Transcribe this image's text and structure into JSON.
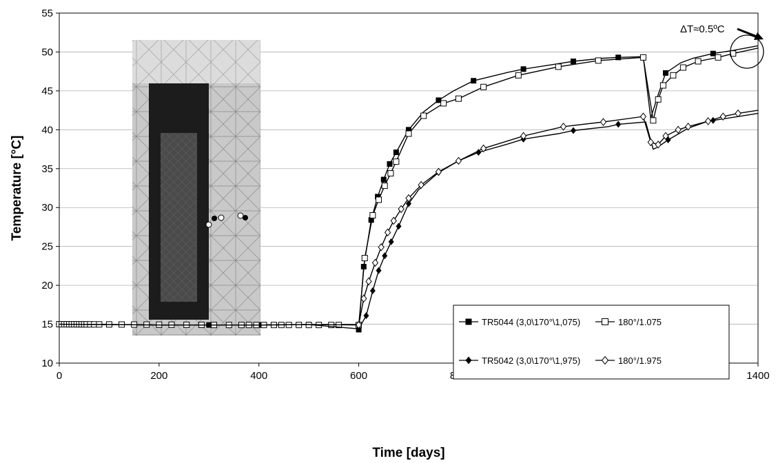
{
  "chart_data": {
    "type": "line",
    "title": "",
    "xlabel": "Time [days]",
    "ylabel": "Temperature [°C]",
    "xlim": [
      0,
      1400
    ],
    "ylim": [
      10,
      55
    ],
    "xticks": [
      0,
      200,
      400,
      600,
      800,
      1000,
      1200,
      1400
    ],
    "yticks": [
      10,
      15,
      20,
      25,
      30,
      35,
      40,
      45,
      50,
      55
    ],
    "grid": "y-major",
    "legend_position": "bottom-right",
    "annotation": "ΔT≈0.5ºC",
    "series": [
      {
        "name": "TR5044 (3,0\\170°\\1,075)",
        "marker": "filled-square",
        "values": [
          [
            0,
            15.0
          ],
          [
            100,
            14.95
          ],
          [
            200,
            14.9
          ],
          [
            300,
            14.9
          ],
          [
            400,
            14.9
          ],
          [
            500,
            14.95
          ],
          [
            595,
            14.95
          ],
          [
            600,
            14.3
          ],
          [
            610,
            22.4
          ],
          [
            625,
            28.4
          ],
          [
            638,
            31.4
          ],
          [
            650,
            33.6
          ],
          [
            662,
            35.6
          ],
          [
            675,
            37.1
          ],
          [
            700,
            40.0
          ],
          [
            730,
            42.3
          ],
          [
            760,
            43.8
          ],
          [
            790,
            45.0
          ],
          [
            830,
            46.3
          ],
          [
            900,
            47.4
          ],
          [
            930,
            47.8
          ],
          [
            1000,
            48.5
          ],
          [
            1030,
            48.8
          ],
          [
            1090,
            49.2
          ],
          [
            1120,
            49.3
          ],
          [
            1170,
            49.4
          ],
          [
            1185,
            41.5
          ],
          [
            1200,
            44.5
          ],
          [
            1215,
            47.3
          ],
          [
            1245,
            48.6
          ],
          [
            1270,
            49.2
          ],
          [
            1310,
            49.8
          ],
          [
            1350,
            50.2
          ],
          [
            1400,
            50.8
          ]
        ],
        "markers": [
          [
            0,
            15.0
          ],
          [
            100,
            14.95
          ],
          [
            200,
            14.9
          ],
          [
            300,
            14.9
          ],
          [
            400,
            14.9
          ],
          [
            500,
            14.95
          ],
          [
            600,
            14.3
          ],
          [
            610,
            22.4
          ],
          [
            625,
            28.4
          ],
          [
            638,
            31.4
          ],
          [
            650,
            33.6
          ],
          [
            662,
            35.6
          ],
          [
            675,
            37.1
          ],
          [
            700,
            40.0
          ],
          [
            760,
            43.8
          ],
          [
            830,
            46.3
          ],
          [
            930,
            47.8
          ],
          [
            1030,
            48.8
          ],
          [
            1120,
            49.3
          ],
          [
            1215,
            47.3
          ],
          [
            1310,
            49.8
          ]
        ]
      },
      {
        "name": "180°/1.075",
        "marker": "open-square",
        "values": [
          [
            0,
            15.0
          ],
          [
            100,
            14.95
          ],
          [
            200,
            14.9
          ],
          [
            300,
            14.9
          ],
          [
            400,
            14.9
          ],
          [
            500,
            14.95
          ],
          [
            595,
            14.95
          ],
          [
            600,
            14.9
          ],
          [
            612,
            23.5
          ],
          [
            628,
            29.0
          ],
          [
            640,
            31.0
          ],
          [
            652,
            32.8
          ],
          [
            664,
            34.4
          ],
          [
            675,
            35.9
          ],
          [
            700,
            39.5
          ],
          [
            730,
            41.8
          ],
          [
            770,
            43.4
          ],
          [
            800,
            44.0
          ],
          [
            850,
            45.5
          ],
          [
            920,
            47.0
          ],
          [
            1000,
            48.1
          ],
          [
            1080,
            48.9
          ],
          [
            1170,
            49.3
          ],
          [
            1190,
            41.2
          ],
          [
            1200,
            43.9
          ],
          [
            1210,
            45.7
          ],
          [
            1230,
            47.0
          ],
          [
            1250,
            48.0
          ],
          [
            1280,
            48.8
          ],
          [
            1320,
            49.3
          ],
          [
            1350,
            49.8
          ],
          [
            1400,
            50.5
          ]
        ],
        "markers": [
          [
            600,
            14.9
          ],
          [
            612,
            23.5
          ],
          [
            628,
            29.0
          ],
          [
            640,
            31.0
          ],
          [
            652,
            32.8
          ],
          [
            664,
            34.4
          ],
          [
            675,
            35.9
          ],
          [
            700,
            39.5
          ],
          [
            730,
            41.8
          ],
          [
            770,
            43.4
          ],
          [
            800,
            44.0
          ],
          [
            850,
            45.5
          ],
          [
            920,
            47.0
          ],
          [
            1000,
            48.1
          ],
          [
            1080,
            48.9
          ],
          [
            1170,
            49.3
          ],
          [
            1190,
            41.2
          ],
          [
            1200,
            43.9
          ],
          [
            1210,
            45.7
          ],
          [
            1230,
            47.0
          ],
          [
            1250,
            48.0
          ],
          [
            1280,
            48.8
          ],
          [
            1320,
            49.3
          ],
          [
            1350,
            49.8
          ]
        ]
      },
      {
        "name": "TR5042 (3,0\\170°\\1,975)",
        "marker": "filled-diamond",
        "values": [
          [
            0,
            15.0
          ],
          [
            100,
            14.95
          ],
          [
            200,
            14.9
          ],
          [
            300,
            14.9
          ],
          [
            400,
            14.9
          ],
          [
            500,
            14.95
          ],
          [
            600,
            14.4
          ],
          [
            615,
            16.1
          ],
          [
            628,
            19.3
          ],
          [
            640,
            21.9
          ],
          [
            652,
            23.8
          ],
          [
            665,
            25.6
          ],
          [
            680,
            27.6
          ],
          [
            700,
            30.5
          ],
          [
            720,
            32.3
          ],
          [
            760,
            34.5
          ],
          [
            800,
            36.0
          ],
          [
            840,
            37.1
          ],
          [
            900,
            38.2
          ],
          [
            930,
            38.8
          ],
          [
            1000,
            39.5
          ],
          [
            1030,
            39.9
          ],
          [
            1100,
            40.4
          ],
          [
            1120,
            40.7
          ],
          [
            1175,
            41.0
          ],
          [
            1190,
            37.5
          ],
          [
            1200,
            37.8
          ],
          [
            1220,
            38.7
          ],
          [
            1260,
            40.2
          ],
          [
            1300,
            41.1
          ],
          [
            1350,
            41.6
          ],
          [
            1400,
            42.1
          ]
        ],
        "markers": [
          [
            600,
            14.4
          ],
          [
            615,
            16.1
          ],
          [
            628,
            19.3
          ],
          [
            640,
            21.9
          ],
          [
            652,
            23.8
          ],
          [
            665,
            25.6
          ],
          [
            680,
            27.6
          ],
          [
            700,
            30.5
          ],
          [
            760,
            34.5
          ],
          [
            840,
            37.1
          ],
          [
            930,
            38.8
          ],
          [
            1030,
            39.9
          ],
          [
            1120,
            40.7
          ],
          [
            1220,
            38.7
          ],
          [
            1310,
            41.2
          ]
        ]
      },
      {
        "name": "180°/1.975",
        "marker": "open-diamond",
        "values": [
          [
            0,
            15.0
          ],
          [
            100,
            14.95
          ],
          [
            200,
            14.9
          ],
          [
            300,
            14.9
          ],
          [
            400,
            14.9
          ],
          [
            500,
            14.95
          ],
          [
            600,
            14.9
          ],
          [
            610,
            18.3
          ],
          [
            620,
            20.5
          ],
          [
            633,
            22.9
          ],
          [
            645,
            24.9
          ],
          [
            658,
            26.8
          ],
          [
            670,
            28.3
          ],
          [
            685,
            29.8
          ],
          [
            700,
            31.2
          ],
          [
            725,
            32.9
          ],
          [
            760,
            34.6
          ],
          [
            800,
            36.0
          ],
          [
            850,
            37.6
          ],
          [
            930,
            39.2
          ],
          [
            1010,
            40.4
          ],
          [
            1090,
            41.0
          ],
          [
            1170,
            41.7
          ],
          [
            1185,
            38.4
          ],
          [
            1200,
            38.1
          ],
          [
            1215,
            39.2
          ],
          [
            1240,
            40.0
          ],
          [
            1260,
            40.4
          ],
          [
            1300,
            41.1
          ],
          [
            1330,
            41.7
          ],
          [
            1360,
            42.1
          ],
          [
            1400,
            42.5
          ]
        ],
        "markers": [
          [
            600,
            14.9
          ],
          [
            610,
            18.3
          ],
          [
            620,
            20.5
          ],
          [
            633,
            22.9
          ],
          [
            645,
            24.9
          ],
          [
            658,
            26.8
          ],
          [
            670,
            28.3
          ],
          [
            685,
            29.8
          ],
          [
            700,
            31.2
          ],
          [
            725,
            32.9
          ],
          [
            760,
            34.6
          ],
          [
            800,
            36.0
          ],
          [
            850,
            37.6
          ],
          [
            930,
            39.2
          ],
          [
            1010,
            40.4
          ],
          [
            1090,
            41.0
          ],
          [
            1170,
            41.7
          ],
          [
            1185,
            38.4
          ],
          [
            1200,
            38.1
          ],
          [
            1215,
            39.2
          ],
          [
            1240,
            40.0
          ],
          [
            1260,
            40.4
          ],
          [
            1300,
            41.1
          ],
          [
            1330,
            41.7
          ],
          [
            1360,
            42.1
          ]
        ]
      }
    ]
  }
}
